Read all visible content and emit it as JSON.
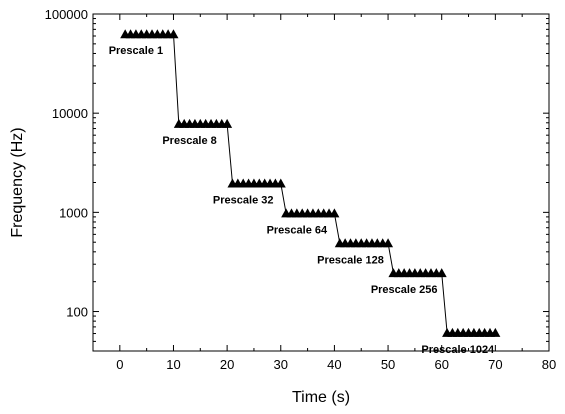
{
  "chart_data": {
    "type": "line",
    "xlabel": "Time (s)",
    "ylabel": "Frequency (Hz)",
    "xlim": [
      -5,
      80
    ],
    "ylim": [
      40,
      100000
    ],
    "y_scale": "log",
    "grid": false,
    "x_ticks": [
      0,
      10,
      20,
      30,
      40,
      50,
      60,
      70,
      80
    ],
    "x_tick_labels": [
      "0",
      "10",
      "20",
      "30",
      "40",
      "50",
      "60",
      "70",
      "80"
    ],
    "y_ticks": [
      100,
      1000,
      10000,
      100000
    ],
    "y_tick_labels": [
      "100",
      "1000",
      "10000",
      "100000"
    ],
    "marker": "triangle-up",
    "line_color": "#000000",
    "segments": [
      {
        "label": "Prescale 1",
        "value": 62500,
        "x": [
          1,
          2,
          3,
          4,
          5,
          6,
          7,
          8,
          9,
          10
        ]
      },
      {
        "label": "Prescale 8",
        "value": 7812,
        "x": [
          11,
          12,
          13,
          14,
          15,
          16,
          17,
          18,
          19,
          20
        ]
      },
      {
        "label": "Prescale 32",
        "value": 1953,
        "x": [
          21,
          22,
          23,
          24,
          25,
          26,
          27,
          28,
          29,
          30
        ]
      },
      {
        "label": "Prescale 64",
        "value": 977,
        "x": [
          31,
          32,
          33,
          34,
          35,
          36,
          37,
          38,
          39,
          40
        ]
      },
      {
        "label": "Prescale 128",
        "value": 488,
        "x": [
          41,
          42,
          43,
          44,
          45,
          46,
          47,
          48,
          49,
          50
        ]
      },
      {
        "label": "Prescale 256",
        "value": 244,
        "x": [
          51,
          52,
          53,
          54,
          55,
          56,
          57,
          58,
          59,
          60
        ]
      },
      {
        "label": "Prescale 1024",
        "value": 61,
        "x": [
          61,
          62,
          63,
          64,
          65,
          66,
          67,
          68,
          69,
          70
        ]
      }
    ]
  }
}
